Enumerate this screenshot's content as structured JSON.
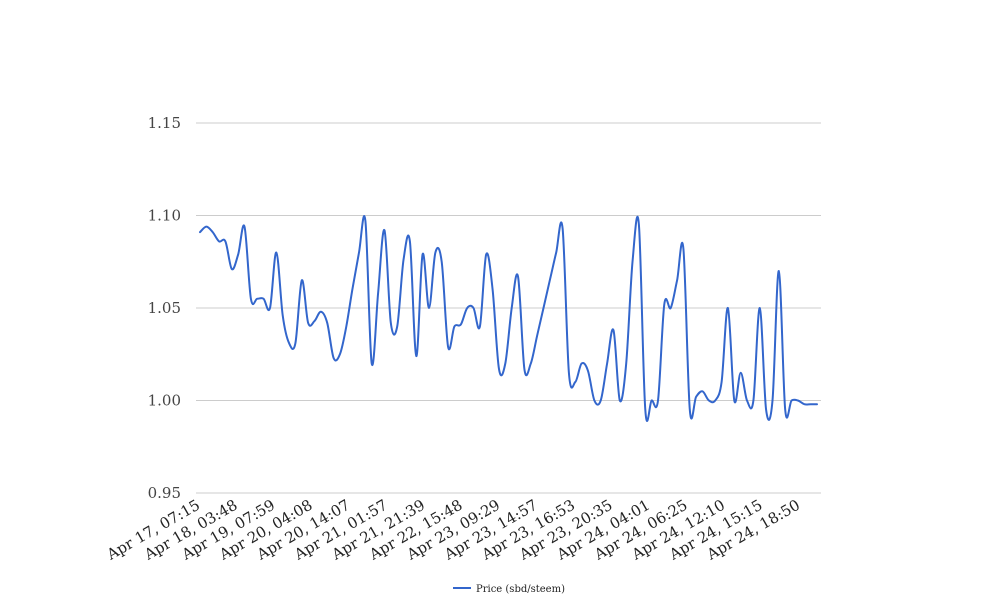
{
  "chart_data": {
    "type": "line",
    "title": "",
    "xlabel": "",
    "ylabel": "",
    "ylim": [
      0.95,
      1.15
    ],
    "y_ticks": [
      "0.95",
      "1.00",
      "1.05",
      "1.10",
      "1.15"
    ],
    "y_tick_values": [
      0.95,
      1.0,
      1.05,
      1.1,
      1.15
    ],
    "x_tick_labels": [
      "Apr 17, 07:15",
      "Apr 18, 03:48",
      "Apr 19, 07:59",
      "Apr 20, 04:08",
      "Apr 20, 14:07",
      "Apr 21, 01:57",
      "Apr 21, 21:39",
      "Apr 22, 15:48",
      "Apr 23, 09:29",
      "Apr 23, 14:57",
      "Apr 23, 16:53",
      "Apr 23, 20:35",
      "Apr 24, 04:01",
      "Apr 24, 06:25",
      "Apr 24, 12:10",
      "Apr 24, 15:15",
      "Apr 24, 18:50"
    ],
    "grid": true,
    "legend_position": "bottom-center",
    "colors": {
      "series": "#3366cc",
      "grid": "#cccccc"
    },
    "series": [
      {
        "name": "Price (sbd/steem)",
        "values": [
          1.091,
          1.094,
          1.091,
          1.086,
          1.086,
          1.071,
          1.079,
          1.094,
          1.055,
          1.055,
          1.055,
          1.05,
          1.08,
          1.046,
          1.031,
          1.031,
          1.065,
          1.042,
          1.043,
          1.048,
          1.042,
          1.023,
          1.025,
          1.04,
          1.061,
          1.08,
          1.097,
          1.02,
          1.058,
          1.092,
          1.042,
          1.04,
          1.076,
          1.086,
          1.024,
          1.079,
          1.05,
          1.08,
          1.075,
          1.029,
          1.04,
          1.041,
          1.05,
          1.05,
          1.04,
          1.079,
          1.06,
          1.017,
          1.02,
          1.05,
          1.067,
          1.017,
          1.02,
          1.035,
          1.05,
          1.065,
          1.08,
          1.093,
          1.015,
          1.01,
          1.02,
          1.016,
          1.0,
          1.0,
          1.02,
          1.038,
          1.0,
          1.02,
          1.075,
          1.095,
          0.995,
          1.0,
          1.0,
          1.052,
          1.05,
          1.065,
          1.082,
          0.995,
          1.002,
          1.005,
          1.0,
          1.0,
          1.01,
          1.05,
          1.0,
          1.015,
          1.0,
          1.0,
          1.05,
          0.995,
          1.0,
          1.07,
          0.995,
          1.0,
          1.0,
          0.998,
          0.998,
          0.998
        ]
      }
    ]
  }
}
